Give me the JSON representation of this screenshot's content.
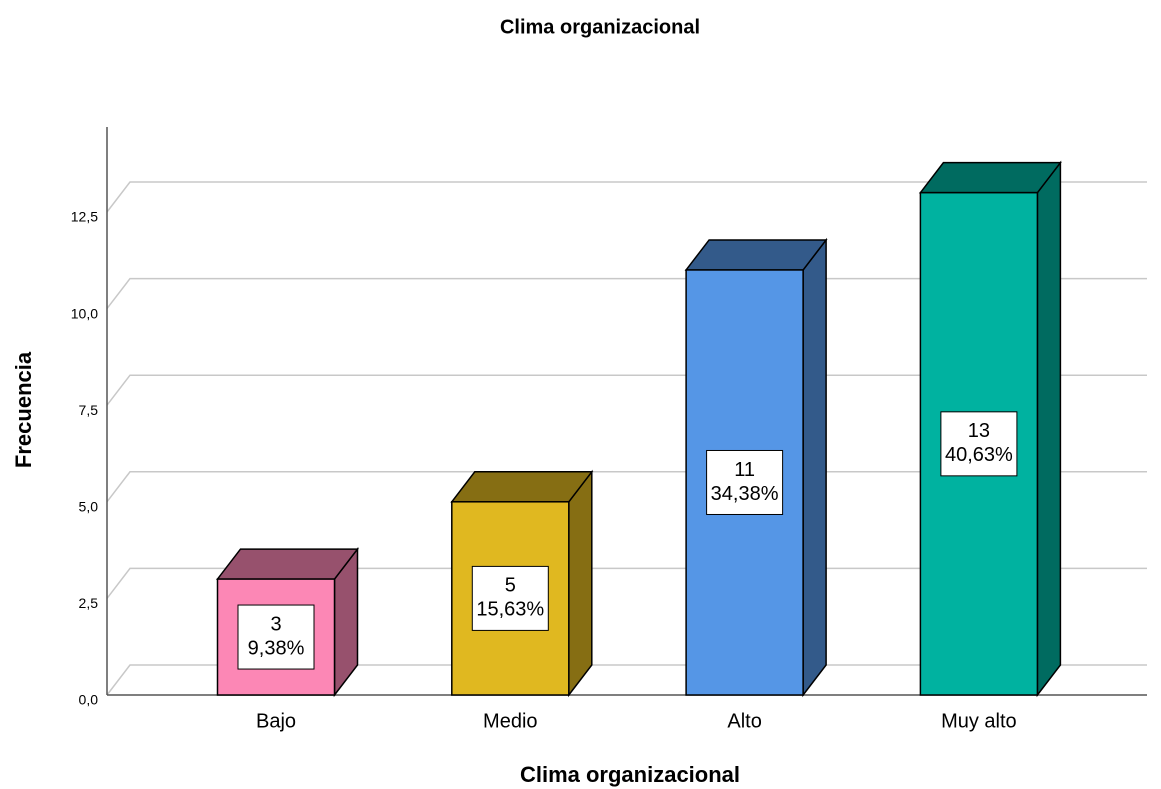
{
  "chart_data": {
    "type": "bar3d",
    "title": "Clima organizacional",
    "x_label": "Clima organizacional",
    "y_label": "Frecuencia",
    "categories": [
      "Bajo",
      "Medio",
      "Alto",
      "Muy alto"
    ],
    "values": [
      3,
      5,
      11,
      13
    ],
    "percent_labels": [
      "9,38%",
      "15,63%",
      "34,38%",
      "40,63%"
    ],
    "colors": [
      "#fc87b5",
      "#e0b820",
      "#5596e6",
      "#00b2a0"
    ],
    "ylim": [
      0,
      14.7
    ],
    "yticks": [
      {
        "value": 0,
        "label": "0,0"
      },
      {
        "value": 2.5,
        "label": "2,5"
      },
      {
        "value": 5,
        "label": "5,0"
      },
      {
        "value": 7.5,
        "label": "7,5"
      },
      {
        "value": 10,
        "label": "10,0"
      },
      {
        "value": 12.5,
        "label": "12,5"
      }
    ],
    "grid": true
  }
}
